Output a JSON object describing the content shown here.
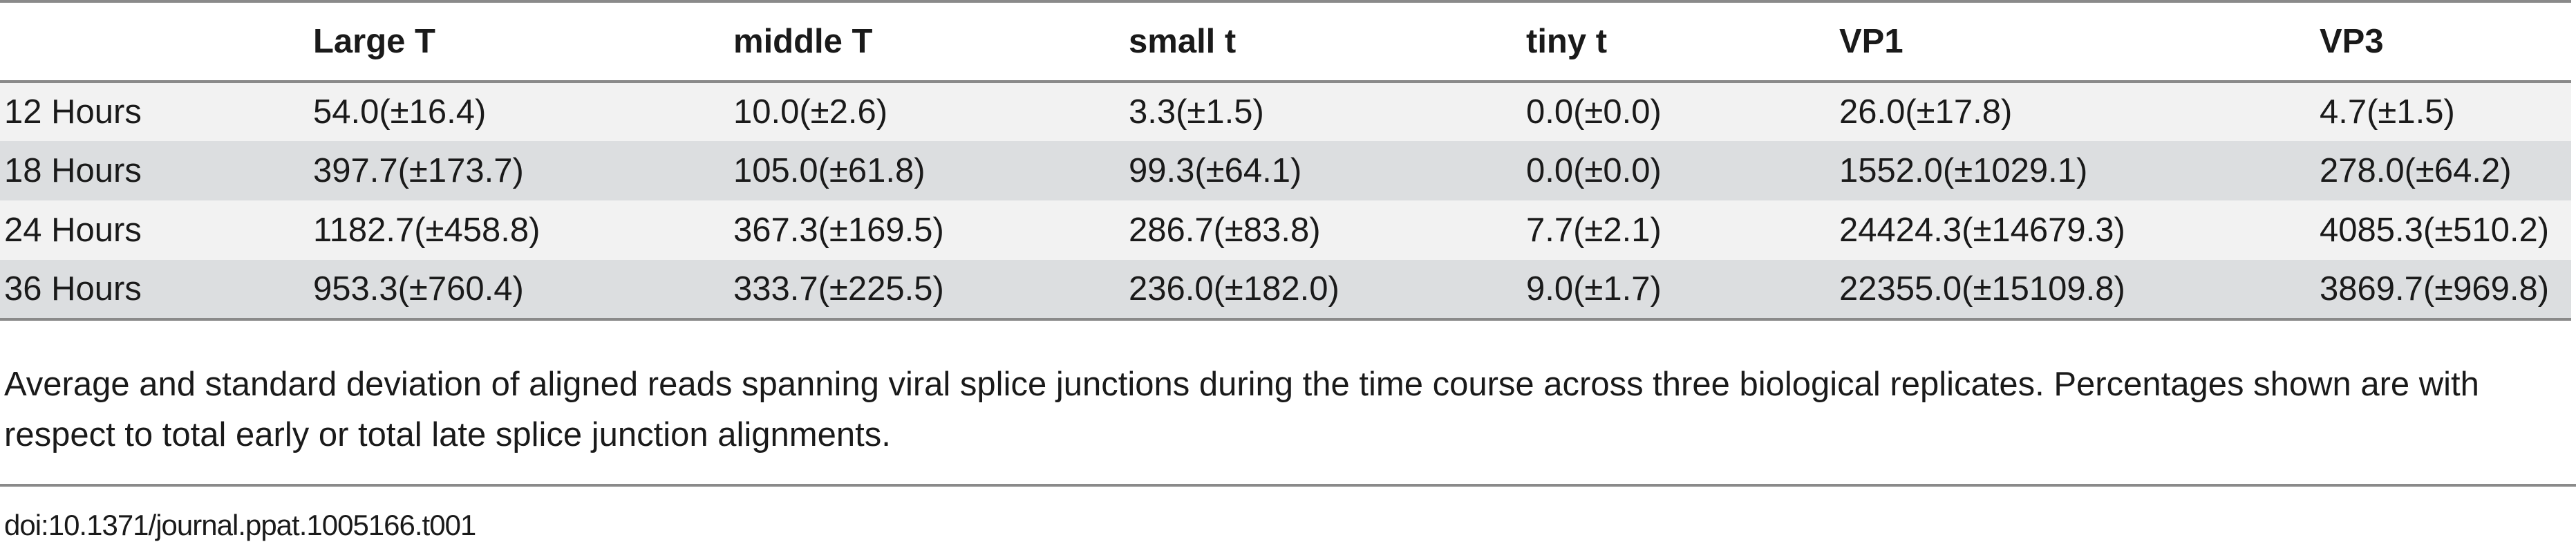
{
  "table": {
    "headers": [
      "",
      "Large T",
      "middle T",
      "small t",
      "tiny t",
      "VP1",
      "VP3"
    ],
    "rows": [
      [
        "12 Hours",
        "54.0(±16.4)",
        "10.0(±2.6)",
        "3.3(±1.5)",
        "0.0(±0.0)",
        "26.0(±17.8)",
        "4.7(±1.5)"
      ],
      [
        "18 Hours",
        "397.7(±173.7)",
        "105.0(±61.8)",
        "99.3(±64.1)",
        "0.0(±0.0)",
        "1552.0(±1029.1)",
        "278.0(±64.2)"
      ],
      [
        "24 Hours",
        "1182.7(±458.8)",
        "367.3(±169.5)",
        "286.7(±83.8)",
        "7.7(±2.1)",
        "24424.3(±14679.3)",
        "4085.3(±510.2)"
      ],
      [
        "36 Hours",
        "953.3(±760.4)",
        "333.7(±225.5)",
        "236.0(±182.0)",
        "9.0(±1.7)",
        "22355.0(±15109.8)",
        "3869.7(±969.8)"
      ]
    ]
  },
  "caption": "Average and standard deviation of aligned reads spanning viral splice junctions during the time course across three biological replicates. Percentages shown are with respect to total early or total late splice junction alignments.",
  "doi": "doi:10.1371/journal.ppat.1005166.t001",
  "colors": {
    "rule": "#8a8a8a",
    "row_light": "#f2f2f2",
    "row_dark": "#dcdee0",
    "text": "#1a1a1a"
  }
}
